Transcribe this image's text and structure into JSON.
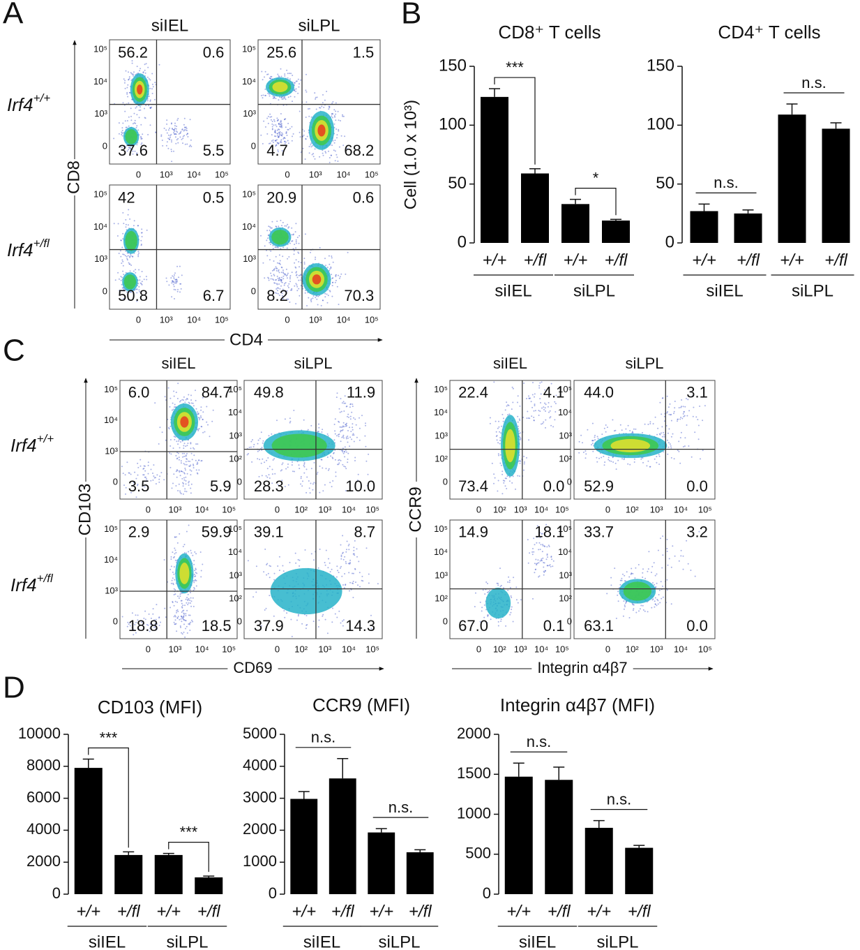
{
  "panels": [
    "A",
    "B",
    "C",
    "D"
  ],
  "flow_a": {
    "columns": [
      "siIEL",
      "siLPL"
    ],
    "rows": [
      {
        "gene": "Irf4",
        "genotype": "+/+"
      },
      {
        "gene": "Irf4",
        "genotype": "+/fl"
      }
    ],
    "y_label": "CD8",
    "x_label": "CD4",
    "yticks": [
      "10⁵",
      "10⁴",
      "10³",
      "0"
    ],
    "xticks": [
      "0",
      "10³",
      "10⁴",
      "10⁵"
    ],
    "plots": [
      [
        [
          "56.2",
          "0.6",
          "37.6",
          "5.5"
        ],
        [
          "25.6",
          "1.5",
          "4.7",
          "68.2"
        ]
      ],
      [
        [
          "42",
          "0.5",
          "50.8",
          "6.7"
        ],
        [
          "20.9",
          "0.6",
          "8.2",
          "70.3"
        ]
      ]
    ]
  },
  "flow_c": {
    "rows": [
      {
        "gene": "Irf4",
        "genotype": "+/+"
      },
      {
        "gene": "Irf4",
        "genotype": "+/fl"
      }
    ],
    "groups": [
      {
        "columns": [
          "siIEL",
          "siLPL"
        ],
        "y_label": "CD103",
        "x_label": "CD69",
        "yticks": [
          [
            "10⁵",
            "10⁴",
            "10³",
            "0"
          ],
          [
            "10⁵",
            "10⁴",
            "10³",
            "10²",
            "0"
          ]
        ],
        "xticks": [
          [
            "0",
            "10³",
            "10⁴",
            "10⁵"
          ],
          [
            "0",
            "10²",
            "10³",
            "10⁴",
            "10⁵"
          ]
        ],
        "plots": [
          [
            [
              "6.0",
              "84.7",
              "3.5",
              "5.9"
            ],
            [
              "49.8",
              "11.9",
              "28.3",
              "10.0"
            ]
          ],
          [
            [
              "2.9",
              "59.9",
              "18.8",
              "18.5"
            ],
            [
              "39.1",
              "8.7",
              "37.9",
              "14.3"
            ]
          ]
        ]
      },
      {
        "columns": [
          "siIEL",
          "siLPL"
        ],
        "y_label": "CCR9",
        "x_label": "Integrin α4β7",
        "yticks": [
          [
            "10⁵",
            "10⁴",
            "10³",
            "10²",
            "0"
          ],
          [
            "10⁵",
            "10⁴",
            "10³",
            "10²",
            "0"
          ]
        ],
        "xticks": [
          [
            "0",
            "10²",
            "10³",
            "10⁴",
            "10⁵"
          ],
          [
            "0",
            "10²",
            "10³",
            "10⁴",
            "10⁵"
          ]
        ],
        "plots": [
          [
            [
              "22.4",
              "4.1",
              "73.4",
              "0.0"
            ],
            [
              "44.0",
              "3.1",
              "52.9",
              "0.0"
            ]
          ],
          [
            [
              "14.9",
              "18.1",
              "67.0",
              "0.1"
            ],
            [
              "33.7",
              "3.2",
              "63.1",
              "0.0"
            ]
          ]
        ]
      }
    ]
  },
  "chart_data": [
    {
      "type": "bar",
      "title": "CD8⁺ T cells",
      "y_label": "Cell (1.0 x 10³)",
      "categories": [
        "+/+",
        "+/fl",
        "+/+",
        "+/fl"
      ],
      "groups": [
        "siIEL",
        "siLPL"
      ],
      "values": [
        124,
        59,
        33,
        19
      ],
      "errors": [
        7,
        4,
        4,
        1
      ],
      "color": "#000000",
      "ylim": [
        0,
        150
      ],
      "yticks": [
        0,
        50,
        100,
        150
      ],
      "annotations": [
        "***",
        "*"
      ]
    },
    {
      "type": "bar",
      "title": "CD4⁺ T cells",
      "categories": [
        "+/+",
        "+/fl",
        "+/+",
        "+/fl"
      ],
      "groups": [
        "siIEL",
        "siLPL"
      ],
      "values": [
        27,
        25,
        109,
        97
      ],
      "errors": [
        6,
        3,
        9,
        5
      ],
      "color": "#000000",
      "ylim": [
        0,
        150
      ],
      "yticks": [
        0,
        50,
        100,
        150
      ],
      "annotations": [
        "n.s.",
        "n.s."
      ]
    },
    {
      "type": "bar",
      "title": "CD103 (MFI)",
      "categories": [
        "+/+",
        "+/fl",
        "+/+",
        "+/fl"
      ],
      "groups": [
        "siIEL",
        "siLPL"
      ],
      "values": [
        7900,
        2450,
        2450,
        1050
      ],
      "errors": [
        550,
        200,
        100,
        80
      ],
      "color": "#000000",
      "ylim": [
        0,
        10000
      ],
      "yticks": [
        0,
        2000,
        4000,
        6000,
        8000,
        10000
      ],
      "annotations": [
        "***",
        "***"
      ]
    },
    {
      "type": "bar",
      "title": "CCR9 (MFI)",
      "categories": [
        "+/+",
        "+/fl",
        "+/+",
        "+/fl"
      ],
      "groups": [
        "siIEL",
        "siLPL"
      ],
      "values": [
        2980,
        3620,
        1930,
        1310
      ],
      "errors": [
        230,
        620,
        120,
        80
      ],
      "color": "#000000",
      "ylim": [
        0,
        5000
      ],
      "yticks": [
        0,
        1000,
        2000,
        3000,
        4000,
        5000
      ],
      "annotations": [
        "n.s.",
        "n.s."
      ]
    },
    {
      "type": "bar",
      "title": "Integrin α4β7 (MFI)",
      "categories": [
        "+/+",
        "+/fl",
        "+/+",
        "+/fl"
      ],
      "groups": [
        "siIEL",
        "siLPL"
      ],
      "values": [
        1470,
        1430,
        830,
        580
      ],
      "errors": [
        170,
        160,
        90,
        30
      ],
      "color": "#000000",
      "ylim": [
        0,
        2000
      ],
      "yticks": [
        0,
        500,
        1000,
        1500,
        2000
      ],
      "annotations": [
        "n.s.",
        "n.s."
      ]
    }
  ]
}
